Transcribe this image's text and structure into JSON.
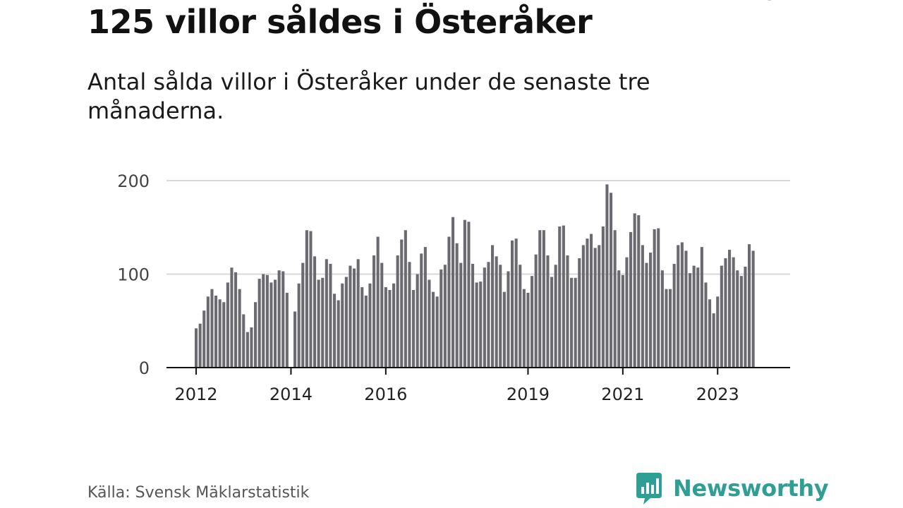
{
  "title": "125 villor såldes i Österåker",
  "subtitle": "Antal sålda villor i Österåker under de senaste tre månaderna.",
  "source": "Källa: Svensk Mäklarstatistik",
  "brand": "Newsworthy",
  "colors": {
    "bar": "#6b6a70",
    "highlight": "#1a9e96",
    "brand": "#2f9e94"
  },
  "chart_data": {
    "type": "bar",
    "title": "125 villor såldes i Österåker",
    "xlabel": "",
    "ylabel": "",
    "ylim": [
      0,
      200
    ],
    "yticks": [
      "0",
      "100",
      "200"
    ],
    "grid": true,
    "first_period": "2012-01",
    "x_tick_labels": [
      {
        "label": "2012",
        "index": 0
      },
      {
        "label": "2014",
        "index": 24
      },
      {
        "label": "2016",
        "index": 48
      },
      {
        "label": "2019",
        "index": 84
      },
      {
        "label": "2021",
        "index": 108
      },
      {
        "label": "2023",
        "index": 132
      }
    ],
    "values": [
      42,
      47,
      61,
      76,
      84,
      77,
      73,
      70,
      91,
      107,
      102,
      84,
      57,
      38,
      43,
      70,
      95,
      100,
      99,
      91,
      94,
      104,
      103,
      80,
      0,
      60,
      90,
      112,
      147,
      146,
      119,
      94,
      96,
      116,
      111,
      79,
      72,
      90,
      97,
      109,
      106,
      116,
      86,
      77,
      90,
      120,
      140,
      112,
      86,
      83,
      90,
      120,
      137,
      147,
      113,
      83,
      100,
      122,
      129,
      94,
      81,
      76,
      105,
      110,
      140,
      161,
      133,
      112,
      158,
      156,
      111,
      91,
      92,
      107,
      113,
      131,
      119,
      110,
      81,
      103,
      136,
      138,
      110,
      84,
      80,
      98,
      121,
      147,
      147,
      120,
      97,
      110,
      151,
      152,
      120,
      96,
      96,
      117,
      131,
      138,
      143,
      128,
      131,
      151,
      196,
      187,
      147,
      104,
      99,
      118,
      145,
      165,
      163,
      131,
      112,
      123,
      148,
      149,
      104,
      84,
      84,
      111,
      131,
      134,
      125,
      101,
      109,
      107,
      129,
      91,
      73,
      58,
      76,
      109,
      117,
      126,
      118,
      104,
      98,
      108,
      132,
      125
    ],
    "highlight": {
      "index": 143,
      "label": "125"
    }
  }
}
